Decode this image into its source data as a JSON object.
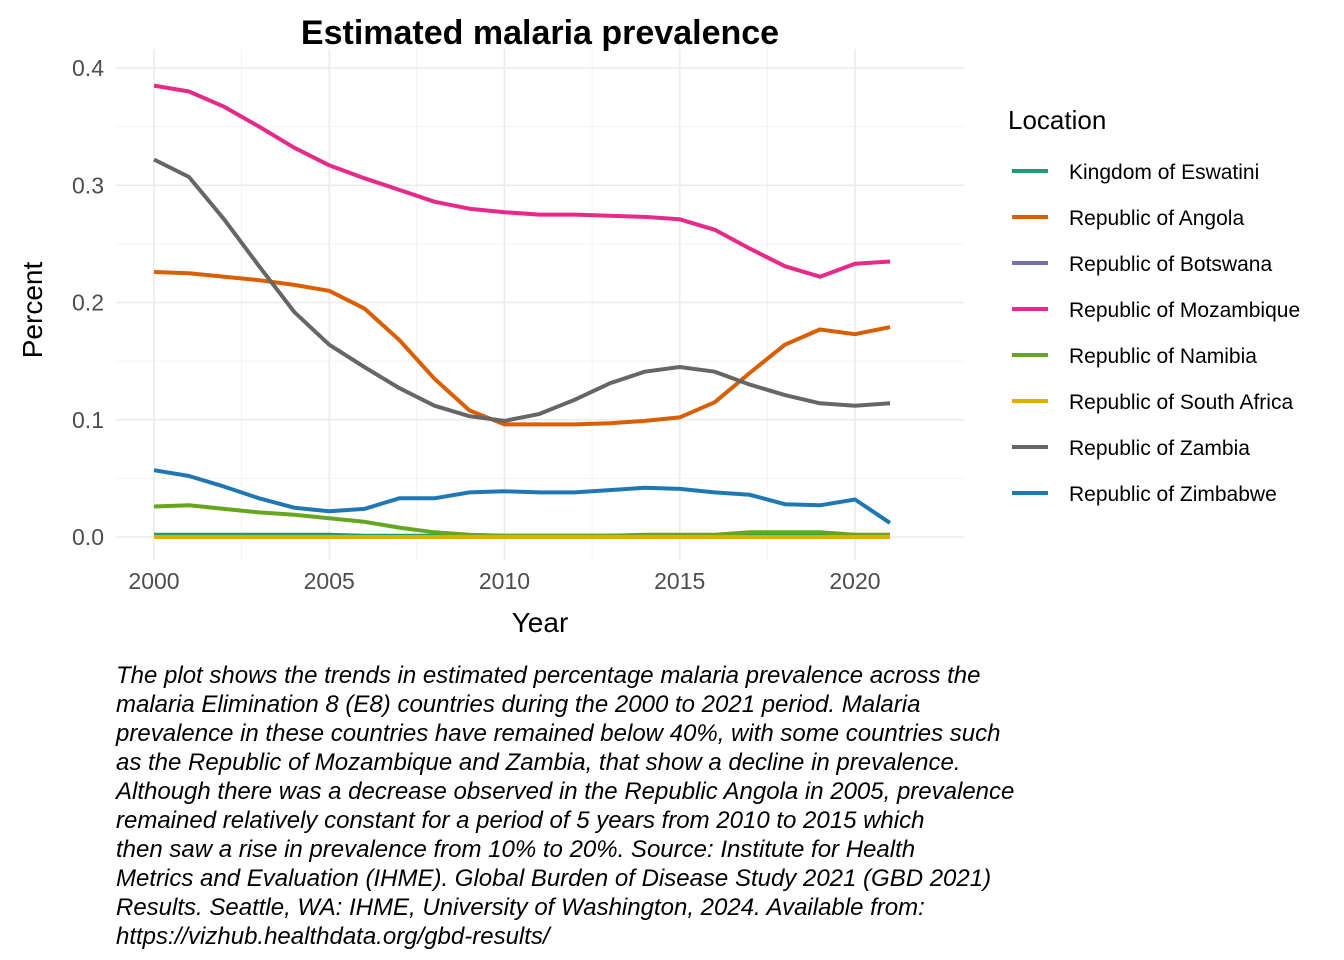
{
  "chart_data": {
    "type": "line",
    "title": "Estimated malaria prevalence",
    "xlabel": "Year",
    "ylabel": "Percent",
    "xlim": [
      2000,
      2021
    ],
    "ylim": [
      0,
      0.4
    ],
    "x_ticks": [
      2000,
      2005,
      2010,
      2015,
      2020
    ],
    "y_ticks": [
      0.0,
      0.1,
      0.2,
      0.3,
      0.4
    ],
    "y_tick_labels": [
      "0.0",
      "0.1",
      "0.2",
      "0.3",
      "0.4"
    ],
    "grid": true,
    "legend_title": "Location",
    "legend_position": "right",
    "x": [
      2000,
      2001,
      2002,
      2003,
      2004,
      2005,
      2006,
      2007,
      2008,
      2009,
      2010,
      2011,
      2012,
      2013,
      2014,
      2015,
      2016,
      2017,
      2018,
      2019,
      2020,
      2021
    ],
    "series": [
      {
        "name": "Kingdom of Eswatini",
        "color": "#1B9E77",
        "values": [
          0.002,
          0.002,
          0.002,
          0.002,
          0.002,
          0.002,
          0.001,
          0.001,
          0.001,
          0.001,
          0.001,
          0.001,
          0.001,
          0.001,
          0.001,
          0.001,
          0.001,
          0.001,
          0.001,
          0.001,
          0.001,
          0.001
        ]
      },
      {
        "name": "Republic of Angola",
        "color": "#D95F02",
        "values": [
          0.226,
          0.225,
          0.222,
          0.219,
          0.215,
          0.21,
          0.195,
          0.168,
          0.135,
          0.108,
          0.096,
          0.096,
          0.096,
          0.097,
          0.099,
          0.102,
          0.115,
          0.14,
          0.164,
          0.177,
          0.173,
          0.179
        ]
      },
      {
        "name": "Republic of Botswana",
        "color": "#7570B3",
        "values": [
          0.0,
          0.0,
          0.0,
          0.0,
          0.0,
          0.0,
          0.0,
          0.0,
          0.0,
          0.0,
          0.0,
          0.0,
          0.0,
          0.0,
          0.0,
          0.0,
          0.0,
          0.0,
          0.0,
          0.0,
          0.0,
          0.0
        ]
      },
      {
        "name": "Republic of Mozambique",
        "color": "#E7298A",
        "values": [
          0.385,
          0.38,
          0.367,
          0.35,
          0.332,
          0.317,
          0.306,
          0.296,
          0.286,
          0.28,
          0.277,
          0.275,
          0.275,
          0.274,
          0.273,
          0.271,
          0.262,
          0.246,
          0.231,
          0.222,
          0.233,
          0.235
        ]
      },
      {
        "name": "Republic of Namibia",
        "color": "#66A61E",
        "values": [
          0.026,
          0.027,
          0.024,
          0.021,
          0.019,
          0.016,
          0.013,
          0.008,
          0.004,
          0.002,
          0.001,
          0.001,
          0.001,
          0.001,
          0.002,
          0.002,
          0.002,
          0.004,
          0.004,
          0.004,
          0.002,
          0.002
        ]
      },
      {
        "name": "Republic of South Africa",
        "color": "#E6AB02",
        "values": [
          0.0,
          0.0,
          0.0,
          0.0,
          0.0,
          0.0,
          0.0,
          0.0,
          0.0,
          0.0,
          0.0,
          0.0,
          0.0,
          0.0,
          0.0,
          0.0,
          0.0,
          0.0,
          0.0,
          0.0,
          0.0,
          0.0
        ]
      },
      {
        "name": "Republic of Zambia",
        "color": "#666666",
        "values": [
          0.322,
          0.307,
          0.271,
          0.231,
          0.192,
          0.164,
          0.145,
          0.127,
          0.112,
          0.103,
          0.099,
          0.105,
          0.117,
          0.131,
          0.141,
          0.145,
          0.141,
          0.13,
          0.121,
          0.114,
          0.112,
          0.114
        ]
      },
      {
        "name": "Republic of Zimbabwe",
        "color": "#1F78B4",
        "values": [
          0.057,
          0.052,
          0.043,
          0.033,
          0.025,
          0.022,
          0.024,
          0.033,
          0.033,
          0.038,
          0.039,
          0.038,
          0.038,
          0.04,
          0.042,
          0.041,
          0.038,
          0.036,
          0.028,
          0.027,
          0.032,
          0.012
        ]
      }
    ]
  },
  "caption_lines": [
    "The plot shows the trends in estimated percentage malaria prevalence across the",
    "malaria Elimination 8 (E8) countries during the 2000 to 2021 period. Malaria",
    "prevalence in these countries have remained below 40%, with some countries such",
    "as the Republic of Mozambique and Zambia, that show a decline in prevalence.",
    "Although there was a decrease observed in the Republic Angola in 2005, prevalence",
    "remained relatively constant for a period of 5 years from 2010 to 2015 which",
    "then saw a rise in prevalence from 10% to 20%. Source: Institute for Health",
    "Metrics and Evaluation (IHME). Global Burden of Disease Study 2021 (GBD 2021)",
    "Results. Seattle, WA: IHME, University of Washington, 2024. Available from:",
    "https://vizhub.healthdata.org/gbd-results/"
  ]
}
